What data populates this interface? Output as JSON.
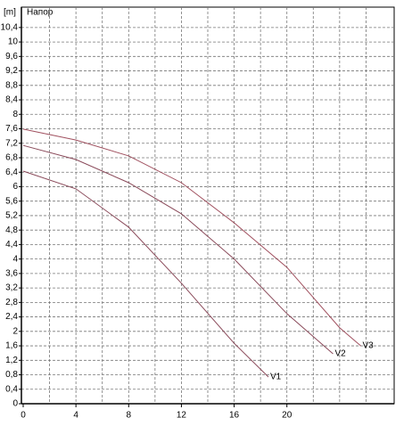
{
  "chart_data": {
    "type": "line",
    "title": "Напор",
    "y_unit": "[m]",
    "xlim": [
      0,
      28
    ],
    "ylim": [
      0,
      11
    ],
    "xticks": [
      0,
      4,
      8,
      12,
      16,
      20
    ],
    "yticks": [
      0,
      {
        "value": 0.4,
        "label": "0,4"
      },
      {
        "value": 0.8,
        "label": "0,8"
      },
      {
        "value": 1.2,
        "label": "1,2"
      },
      {
        "value": 1.6,
        "label": "1,6"
      },
      2,
      {
        "value": 2.4,
        "label": "2,4"
      },
      {
        "value": 2.8,
        "label": "2,8"
      },
      {
        "value": 3.2,
        "label": "3,2"
      },
      {
        "value": 3.6,
        "label": "3,6"
      },
      4,
      {
        "value": 4.4,
        "label": "4,4"
      },
      {
        "value": 4.8,
        "label": "4,8"
      },
      {
        "value": 5.2,
        "label": "5,2"
      },
      {
        "value": 5.6,
        "label": "5,6"
      },
      6,
      {
        "value": 6.4,
        "label": "6,4"
      },
      {
        "value": 6.8,
        "label": "6,8"
      },
      {
        "value": 7.2,
        "label": "7,2"
      },
      {
        "value": 7.6,
        "label": "7,6"
      },
      8,
      {
        "value": 8.4,
        "label": "8,4"
      },
      {
        "value": 8.8,
        "label": "8,8"
      },
      {
        "value": 9.2,
        "label": "9,2"
      },
      {
        "value": 9.6,
        "label": "9,6"
      },
      10,
      {
        "value": 10.4,
        "label": "10,4"
      }
    ],
    "xgrid": [
      2,
      4,
      6,
      8,
      10,
      12,
      14,
      16,
      18,
      20,
      22,
      24,
      26
    ],
    "grid": true,
    "series": [
      {
        "name": "V1",
        "color": "#8a4a5a",
        "x": [
          0,
          4,
          8,
          12,
          16,
          18.6
        ],
        "values": [
          6.43,
          5.94,
          4.88,
          3.33,
          1.67,
          0.74
        ]
      },
      {
        "name": "V2",
        "color": "#8a4a5a",
        "x": [
          0,
          4,
          8,
          12,
          16,
          20,
          23.5
        ],
        "values": [
          7.14,
          6.75,
          6.11,
          5.25,
          4.0,
          2.49,
          1.38
        ]
      },
      {
        "name": "V3",
        "color": "#a0505f",
        "x": [
          0,
          4,
          8,
          12,
          16,
          20,
          24,
          25.6
        ],
        "values": [
          7.59,
          7.29,
          6.85,
          6.11,
          5.0,
          3.77,
          2.1,
          1.6
        ]
      }
    ]
  }
}
